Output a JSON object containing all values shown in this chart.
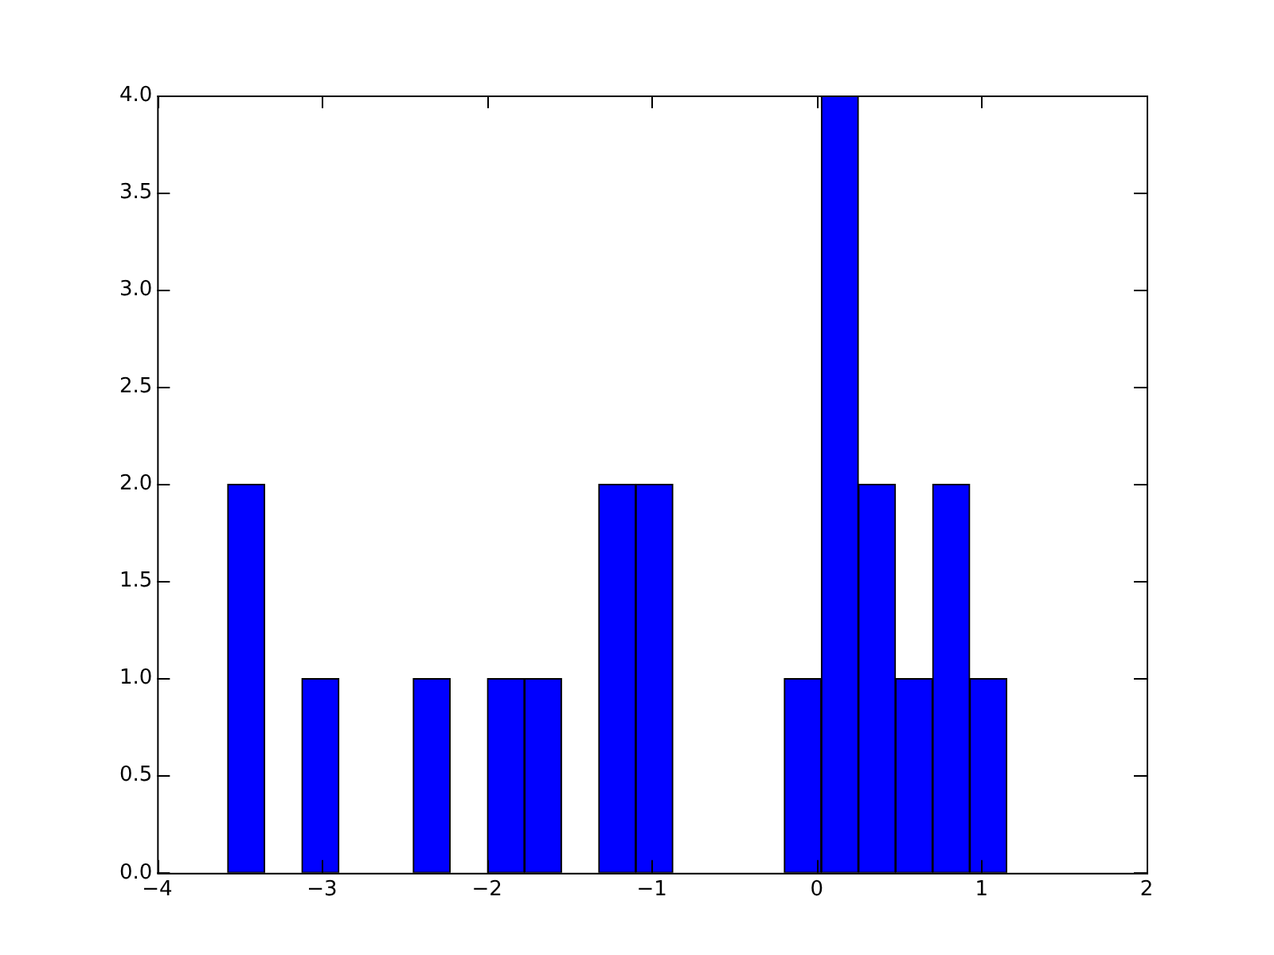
{
  "chart_data": {
    "type": "histogram",
    "bins": [
      -3.57,
      -3.35,
      -3.12,
      -2.9,
      -2.67,
      -2.45,
      -2.22,
      -2.0,
      -1.77,
      -1.55,
      -1.32,
      -1.1,
      -0.87,
      -0.65,
      -0.42,
      -0.2,
      0.03,
      0.25,
      0.48,
      0.7,
      0.93,
      1.15
    ],
    "values": [
      2,
      0,
      1,
      0,
      0,
      1,
      0,
      1,
      1,
      0,
      2,
      2,
      0,
      0,
      0,
      1,
      4,
      2,
      1,
      2,
      1
    ],
    "color": "#0000ff",
    "xlim": [
      -4,
      2
    ],
    "xticks": [
      {
        "value": -4,
        "label": "−4"
      },
      {
        "value": -3,
        "label": "−3"
      },
      {
        "value": -2,
        "label": "−2"
      },
      {
        "value": -1,
        "label": "−1"
      },
      0,
      1,
      2
    ],
    "ylim": [
      0,
      4
    ],
    "yticks": [
      {
        "value": 0,
        "label": "0.0"
      },
      {
        "value": 0.5,
        "label": "0.5"
      },
      {
        "value": 1,
        "label": "1.0"
      },
      {
        "value": 1.5,
        "label": "1.5"
      },
      {
        "value": 2,
        "label": "2.0"
      },
      {
        "value": 2.5,
        "label": "2.5"
      },
      {
        "value": 3,
        "label": "3.0"
      },
      {
        "value": 3.5,
        "label": "3.5"
      },
      {
        "value": 4,
        "label": "4.0"
      }
    ],
    "grid": false
  }
}
